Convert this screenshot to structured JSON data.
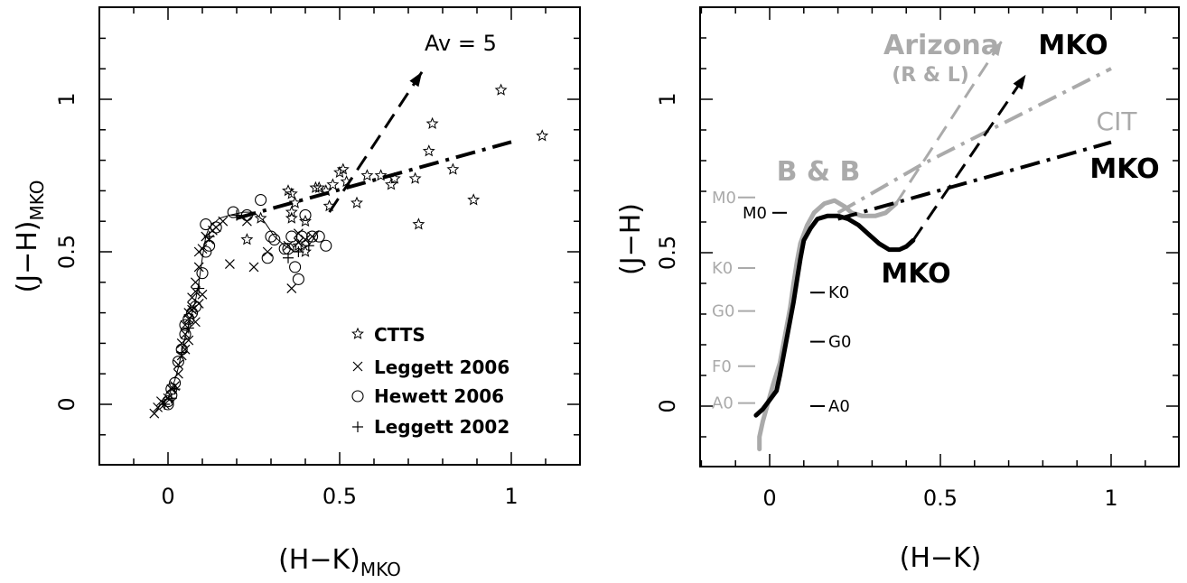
{
  "chart_data": [
    {
      "type": "scatter",
      "xlabel": "(H−K)",
      "xlabel_sub": "MKO",
      "ylabel": "(J−H)",
      "ylabel_sub": "MKO",
      "xlim": [
        -0.2,
        1.2
      ],
      "ylim": [
        -0.2,
        1.3
      ],
      "x_ticks": [
        0,
        0.5,
        1
      ],
      "x_tick_labels": [
        "0",
        "0.5",
        "1"
      ],
      "y_ticks": [
        0,
        0.5,
        1
      ],
      "y_tick_labels": [
        "0",
        "0.5",
        "1"
      ],
      "legend_position": "bottom-right",
      "legend": [
        "CTTS",
        "Leggett 2006",
        "Hewett 2006",
        "Leggett 2002"
      ],
      "annotations": {
        "reddening_label": "Av = 5"
      },
      "series": [
        {
          "name": "CTTS",
          "marker": "star",
          "points": [
            [
              0.23,
              0.54
            ],
            [
              0.27,
              0.61
            ],
            [
              0.35,
              0.7
            ],
            [
              0.36,
              0.69
            ],
            [
              0.37,
              0.66
            ],
            [
              0.36,
              0.63
            ],
            [
              0.4,
              0.6
            ],
            [
              0.4,
              0.5
            ],
            [
              0.38,
              0.52
            ],
            [
              0.44,
              0.71
            ],
            [
              0.46,
              0.7
            ],
            [
              0.47,
              0.65
            ],
            [
              0.48,
              0.72
            ],
            [
              0.5,
              0.76
            ],
            [
              0.51,
              0.77
            ],
            [
              0.52,
              0.73
            ],
            [
              0.55,
              0.66
            ],
            [
              0.58,
              0.75
            ],
            [
              0.62,
              0.75
            ],
            [
              0.65,
              0.72
            ],
            [
              0.66,
              0.74
            ],
            [
              0.72,
              0.74
            ],
            [
              0.73,
              0.59
            ],
            [
              0.76,
              0.83
            ],
            [
              0.77,
              0.92
            ],
            [
              0.83,
              0.77
            ],
            [
              0.89,
              0.67
            ],
            [
              0.97,
              1.03
            ],
            [
              1.09,
              0.88
            ],
            [
              0.36,
              0.61
            ],
            [
              0.43,
              0.71
            ]
          ]
        },
        {
          "name": "Leggett 2006",
          "marker": "x",
          "points": [
            [
              -0.04,
              -0.03
            ],
            [
              -0.03,
              -0.01
            ],
            [
              -0.02,
              0.01
            ],
            [
              -0.01,
              0.0
            ],
            [
              0.0,
              0.02
            ],
            [
              0.01,
              0.05
            ],
            [
              0.02,
              0.06
            ],
            [
              0.03,
              0.1
            ],
            [
              0.03,
              0.13
            ],
            [
              0.04,
              0.16
            ],
            [
              0.04,
              0.2
            ],
            [
              0.05,
              0.23
            ],
            [
              0.05,
              0.26
            ],
            [
              0.06,
              0.28
            ],
            [
              0.06,
              0.3
            ],
            [
              0.07,
              0.32
            ],
            [
              0.07,
              0.35
            ],
            [
              0.08,
              0.37
            ],
            [
              0.08,
              0.4
            ],
            [
              0.09,
              0.45
            ],
            [
              0.09,
              0.5
            ],
            [
              0.1,
              0.51
            ],
            [
              0.11,
              0.55
            ],
            [
              0.13,
              0.57
            ],
            [
              0.16,
              0.6
            ],
            [
              0.18,
              0.46
            ],
            [
              0.23,
              0.6
            ],
            [
              0.25,
              0.45
            ],
            [
              0.29,
              0.5
            ],
            [
              0.35,
              0.52
            ],
            [
              0.36,
              0.38
            ],
            [
              0.38,
              0.53
            ],
            [
              0.38,
              0.56
            ],
            [
              0.4,
              0.54
            ],
            [
              0.42,
              0.55
            ],
            [
              0.07,
              0.31
            ],
            [
              0.09,
              0.33
            ],
            [
              0.1,
              0.36
            ],
            [
              0.06,
              0.21
            ],
            [
              0.05,
              0.18
            ],
            [
              0.08,
              0.27
            ],
            [
              0.12,
              0.54
            ],
            [
              0.14,
              0.58
            ]
          ]
        },
        {
          "name": "Hewett 2006",
          "marker": "circle",
          "points": [
            [
              0.0,
              0.0
            ],
            [
              0.0,
              0.01
            ],
            [
              0.01,
              0.03
            ],
            [
              0.01,
              0.05
            ],
            [
              0.02,
              0.07
            ],
            [
              0.03,
              0.14
            ],
            [
              0.04,
              0.18
            ],
            [
              0.05,
              0.23
            ],
            [
              0.05,
              0.26
            ],
            [
              0.06,
              0.28
            ],
            [
              0.07,
              0.3
            ],
            [
              0.08,
              0.32
            ],
            [
              0.1,
              0.43
            ],
            [
              0.11,
              0.5
            ],
            [
              0.12,
              0.52
            ],
            [
              0.11,
              0.59
            ],
            [
              0.14,
              0.58
            ],
            [
              0.19,
              0.63
            ],
            [
              0.23,
              0.62
            ],
            [
              0.27,
              0.67
            ],
            [
              0.29,
              0.48
            ],
            [
              0.3,
              0.55
            ],
            [
              0.31,
              0.54
            ],
            [
              0.34,
              0.51
            ],
            [
              0.35,
              0.51
            ],
            [
              0.37,
              0.45
            ],
            [
              0.38,
              0.41
            ],
            [
              0.39,
              0.55
            ],
            [
              0.4,
              0.62
            ],
            [
              0.42,
              0.55
            ],
            [
              0.44,
              0.55
            ],
            [
              0.46,
              0.52
            ],
            [
              0.36,
              0.55
            ]
          ]
        },
        {
          "name": "Leggett 2002",
          "marker": "plus",
          "points": [
            [
              -0.01,
              0.0
            ],
            [
              0.01,
              0.02
            ],
            [
              0.02,
              0.05
            ],
            [
              0.04,
              0.17
            ],
            [
              0.06,
              0.25
            ],
            [
              0.09,
              0.38
            ],
            [
              0.12,
              0.55
            ],
            [
              0.2,
              0.62
            ],
            [
              0.35,
              0.48
            ],
            [
              0.38,
              0.5
            ],
            [
              0.41,
              0.52
            ]
          ]
        },
        {
          "name": "intrinsic locus",
          "style": "thin-solid",
          "points": [
            [
              -0.04,
              -0.03
            ],
            [
              -0.02,
              0.0
            ],
            [
              0.0,
              0.02
            ],
            [
              0.01,
              0.05
            ],
            [
              0.02,
              0.08
            ],
            [
              0.03,
              0.12
            ],
            [
              0.04,
              0.17
            ],
            [
              0.05,
              0.22
            ],
            [
              0.06,
              0.26
            ],
            [
              0.07,
              0.3
            ],
            [
              0.08,
              0.34
            ],
            [
              0.09,
              0.4
            ],
            [
              0.1,
              0.48
            ],
            [
              0.11,
              0.55
            ],
            [
              0.12,
              0.58
            ],
            [
              0.15,
              0.61
            ],
            [
              0.18,
              0.62
            ],
            [
              0.22,
              0.63
            ],
            [
              0.25,
              0.63
            ],
            [
              0.28,
              0.6
            ],
            [
              0.31,
              0.55
            ],
            [
              0.34,
              0.52
            ],
            [
              0.37,
              0.5
            ],
            [
              0.41,
              0.52
            ],
            [
              0.44,
              0.57
            ]
          ]
        },
        {
          "name": "CTTS locus",
          "style": "dash-dot",
          "points": [
            [
              0.2,
              0.61
            ],
            [
              1.0,
              0.86
            ]
          ]
        },
        {
          "name": "reddening vector",
          "style": "dashed-arrow",
          "points": [
            [
              0.47,
              0.63
            ],
            [
              0.74,
              1.09
            ]
          ]
        }
      ]
    },
    {
      "type": "line",
      "xlabel": "(H−K)",
      "ylabel": "(J−H)",
      "xlim": [
        -0.2,
        1.2
      ],
      "ylim": [
        -0.2,
        1.3
      ],
      "x_ticks": [
        0,
        0.5,
        1
      ],
      "x_tick_labels": [
        "0",
        "0.5",
        "1"
      ],
      "y_ticks": [
        0,
        0.5,
        1
      ],
      "y_tick_labels": [
        "0",
        "0.5",
        "1"
      ],
      "colors": {
        "mko": "#000000",
        "other": "#aaaaaa"
      },
      "annotations": {
        "arizona": "Arizona",
        "arizona_sub": "(R & L)",
        "mko_top": "MKO",
        "cit": "CIT",
        "mko_mid": "MKO",
        "bb": "B & B",
        "mko_bottom": "MKO"
      },
      "spectral_labels_mko": [
        {
          "label": "M0",
          "y": 0.63
        },
        {
          "label": "K0",
          "y": 0.37
        },
        {
          "label": "G0",
          "y": 0.21
        },
        {
          "label": "A0",
          "y": 0.0
        }
      ],
      "spectral_labels_bb": [
        {
          "label": "M0",
          "y": 0.68
        },
        {
          "label": "K0",
          "y": 0.45
        },
        {
          "label": "G0",
          "y": 0.31
        },
        {
          "label": "F0",
          "y": 0.13
        },
        {
          "label": "A0",
          "y": 0.01
        }
      ],
      "series": [
        {
          "name": "MKO locus",
          "color": "#000000",
          "style": "thick-solid",
          "points": [
            [
              -0.04,
              -0.03
            ],
            [
              -0.02,
              -0.01
            ],
            [
              0.0,
              0.02
            ],
            [
              0.02,
              0.05
            ],
            [
              0.03,
              0.1
            ],
            [
              0.04,
              0.16
            ],
            [
              0.05,
              0.22
            ],
            [
              0.06,
              0.28
            ],
            [
              0.07,
              0.34
            ],
            [
              0.08,
              0.41
            ],
            [
              0.09,
              0.48
            ],
            [
              0.1,
              0.54
            ],
            [
              0.12,
              0.58
            ],
            [
              0.14,
              0.61
            ],
            [
              0.17,
              0.62
            ],
            [
              0.2,
              0.62
            ],
            [
              0.23,
              0.61
            ],
            [
              0.26,
              0.59
            ],
            [
              0.29,
              0.56
            ],
            [
              0.32,
              0.53
            ],
            [
              0.35,
              0.51
            ],
            [
              0.38,
              0.51
            ],
            [
              0.4,
              0.52
            ],
            [
              0.42,
              0.54
            ]
          ]
        },
        {
          "name": "B & B locus",
          "color": "#aaaaaa",
          "style": "thick-solid",
          "points": [
            [
              -0.03,
              -0.14
            ],
            [
              -0.03,
              -0.1
            ],
            [
              -0.02,
              -0.05
            ],
            [
              -0.01,
              -0.01
            ],
            [
              0.0,
              0.03
            ],
            [
              0.01,
              0.07
            ],
            [
              0.03,
              0.14
            ],
            [
              0.04,
              0.2
            ],
            [
              0.05,
              0.26
            ],
            [
              0.06,
              0.32
            ],
            [
              0.07,
              0.4
            ],
            [
              0.08,
              0.47
            ],
            [
              0.09,
              0.53
            ],
            [
              0.11,
              0.59
            ],
            [
              0.13,
              0.63
            ],
            [
              0.16,
              0.66
            ],
            [
              0.19,
              0.67
            ],
            [
              0.22,
              0.65
            ],
            [
              0.24,
              0.63
            ],
            [
              0.27,
              0.62
            ],
            [
              0.31,
              0.62
            ],
            [
              0.34,
              0.63
            ],
            [
              0.37,
              0.66
            ]
          ]
        },
        {
          "name": "MKO CTTS locus",
          "color": "#000000",
          "style": "dash-dot",
          "points": [
            [
              0.2,
              0.61
            ],
            [
              1.0,
              0.86
            ]
          ]
        },
        {
          "name": "CIT CTTS locus",
          "color": "#aaaaaa",
          "style": "dash-dot",
          "points": [
            [
              0.2,
              0.63
            ],
            [
              0.45,
              0.79
            ],
            [
              1.0,
              1.1
            ]
          ]
        },
        {
          "name": "MKO reddening",
          "color": "#000000",
          "style": "dashed-arrow",
          "points": [
            [
              0.42,
              0.54
            ],
            [
              0.75,
              1.08
            ]
          ]
        },
        {
          "name": "Arizona reddening",
          "color": "#aaaaaa",
          "style": "dashed-arrow",
          "points": [
            [
              0.37,
              0.66
            ],
            [
              0.68,
              1.19
            ]
          ]
        }
      ]
    }
  ]
}
